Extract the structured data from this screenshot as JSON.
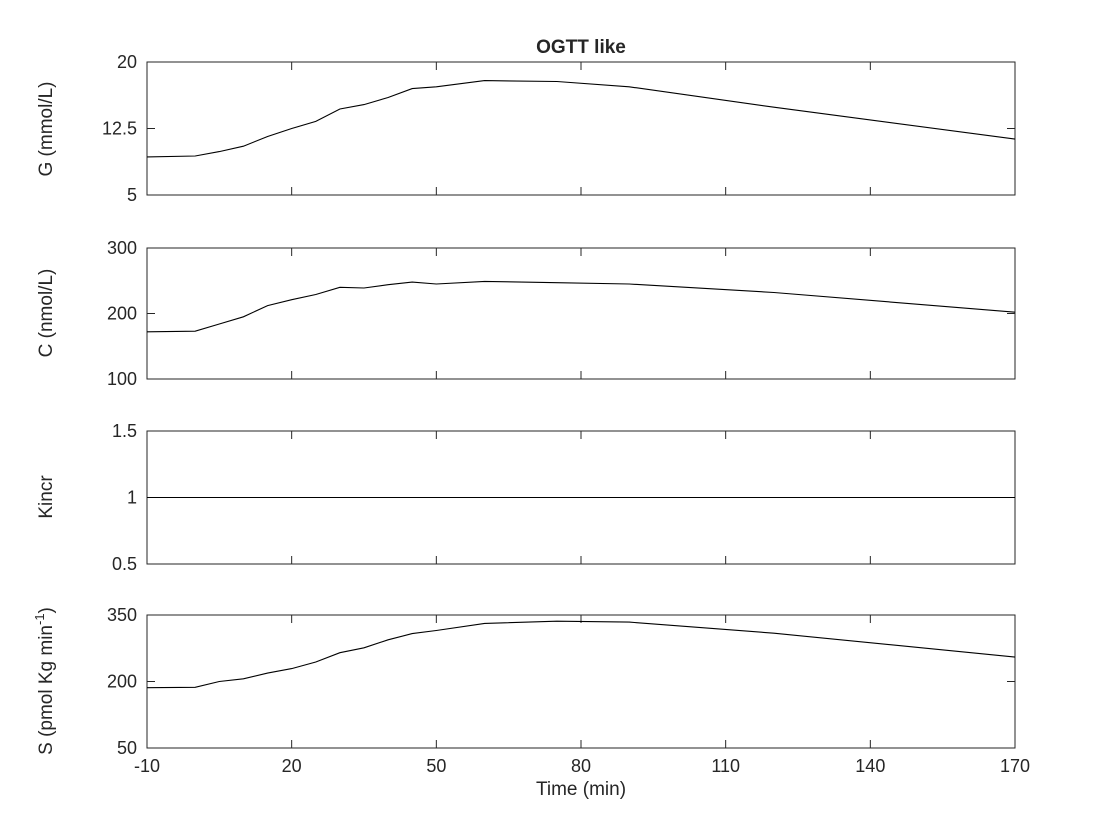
{
  "chart_data": {
    "type": "line",
    "title": "OGTT like",
    "xlabel": "Time (min)",
    "xlim": [
      -10,
      170
    ],
    "xticks": [
      -10,
      20,
      50,
      80,
      110,
      140,
      170
    ],
    "grid": false,
    "subplots": [
      {
        "ylabel": "G (mmol/L)",
        "ylim": [
          5,
          20
        ],
        "yticks": [
          5,
          12.5,
          20
        ],
        "ytick_labels": [
          "5",
          "12.5",
          "20"
        ],
        "x": [
          -10,
          0,
          5,
          10,
          15,
          20,
          25,
          30,
          35,
          40,
          45,
          50,
          60,
          75,
          90,
          120,
          170
        ],
        "y": [
          9.3,
          9.4,
          9.9,
          10.5,
          11.6,
          12.5,
          13.3,
          14.7,
          15.2,
          16.0,
          17.0,
          17.2,
          17.9,
          17.8,
          17.2,
          14.9,
          11.3
        ]
      },
      {
        "ylabel": "C (nmol/L)",
        "ylim": [
          100,
          300
        ],
        "yticks": [
          100,
          200,
          300
        ],
        "ytick_labels": [
          "100",
          "200",
          "300"
        ],
        "x": [
          -10,
          0,
          5,
          10,
          15,
          20,
          25,
          30,
          35,
          40,
          45,
          50,
          60,
          75,
          90,
          120,
          170
        ],
        "y": [
          172,
          173,
          184,
          195,
          212,
          221,
          229,
          240,
          239,
          244,
          248,
          245,
          249,
          247,
          245,
          232,
          202
        ]
      },
      {
        "ylabel": "Kincr",
        "ylim": [
          0.5,
          1.5
        ],
        "yticks": [
          0.5,
          1,
          1.5
        ],
        "ytick_labels": [
          "0.5",
          "1",
          "1.5"
        ],
        "x": [
          -10,
          170
        ],
        "y": [
          1,
          1
        ]
      },
      {
        "ylabel": "S (pmol Kg min",
        "ylabel_sup": "-1",
        "ylabel_end": ")",
        "ylim": [
          50,
          350
        ],
        "yticks": [
          50,
          200,
          350
        ],
        "ytick_labels": [
          "50",
          "200",
          "350"
        ],
        "x": [
          -10,
          0,
          5,
          10,
          15,
          20,
          25,
          30,
          35,
          40,
          45,
          50,
          60,
          75,
          90,
          120,
          170
        ],
        "y": [
          186,
          187,
          200,
          206,
          219,
          229,
          244,
          265,
          276,
          294,
          308,
          315,
          331,
          336,
          334,
          309,
          255
        ]
      }
    ]
  }
}
